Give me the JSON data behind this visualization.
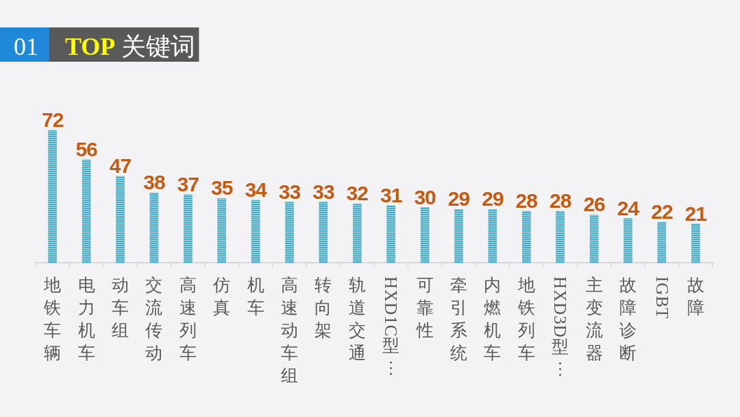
{
  "chart_data": {
    "type": "bar",
    "title": "TOP 关键词",
    "annotations": [
      "01"
    ],
    "categories": [
      "地铁车辆",
      "电力机车",
      "动车组",
      "交流传动",
      "高速列车",
      "仿真",
      "机车",
      "高速动车组",
      "转向架",
      "轨道交通",
      "HXD1C型…",
      "可靠性",
      "牵引系统",
      "内燃机车",
      "地铁列车",
      "HXD3D型…",
      "主变流器",
      "故障诊断",
      "IGBT",
      "故障"
    ],
    "values": [
      72,
      56,
      47,
      38,
      37,
      35,
      34,
      33,
      33,
      32,
      31,
      30,
      29,
      29,
      28,
      28,
      26,
      24,
      22,
      21
    ],
    "color": "#4bacc6",
    "data_labels": true
  }
}
